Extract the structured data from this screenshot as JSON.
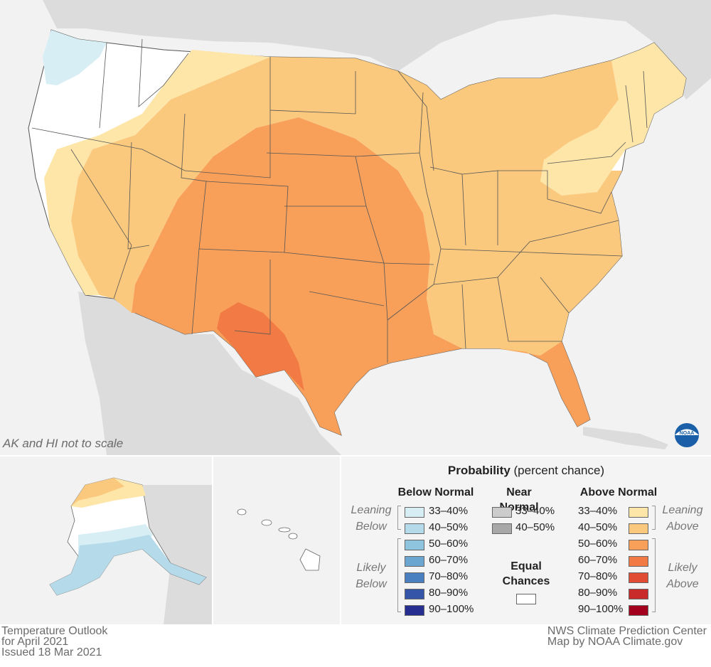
{
  "note": "AK and HI not to scale",
  "legend": {
    "title_bold": "Probability",
    "title_rest": " (percent chance)",
    "below_heading": "Below Normal",
    "near_heading_1": "Near",
    "near_heading_2": "Normal",
    "above_heading": "Above Normal",
    "leaning_word": "Leaning",
    "below_word": "Below",
    "above_word": "Above",
    "likely_word": "Likely",
    "equal_1": "Equal",
    "equal_2": "Chances",
    "below_bins": [
      "33–40%",
      "40–50%",
      "50–60%",
      "60–70%",
      "70–80%",
      "80–90%",
      "90–100%"
    ],
    "near_bins": [
      "33–40%",
      "40–50%"
    ],
    "above_bins": [
      "33–40%",
      "40–50%",
      "50–60%",
      "60–70%",
      "70–80%",
      "80–90%",
      "90–100%"
    ],
    "below_colors": [
      "#d7eef5",
      "#b5dbea",
      "#8ec4de",
      "#6ba6d1",
      "#4a80c0",
      "#3455a8",
      "#262f8f"
    ],
    "near_colors": [
      "#cccccc",
      "#a8a8a8"
    ],
    "above_colors": [
      "#fde6a8",
      "#fbc97d",
      "#f8a05a",
      "#f27a45",
      "#e14c34",
      "#c92b2a",
      "#a3001e"
    ],
    "equal_color": "#ffffff"
  },
  "footer": {
    "left_1": "Temperature Outlook",
    "left_2": "for April 2021",
    "left_3": "Issued 18 Mar 2021",
    "right_1": "NWS Climate Prediction Center",
    "right_2": "Map by NOAA Climate.gov"
  },
  "logo_text": "NOAA",
  "map_colors": {
    "land_outside": "#d9d9d9",
    "water": "#f2f2f2"
  }
}
